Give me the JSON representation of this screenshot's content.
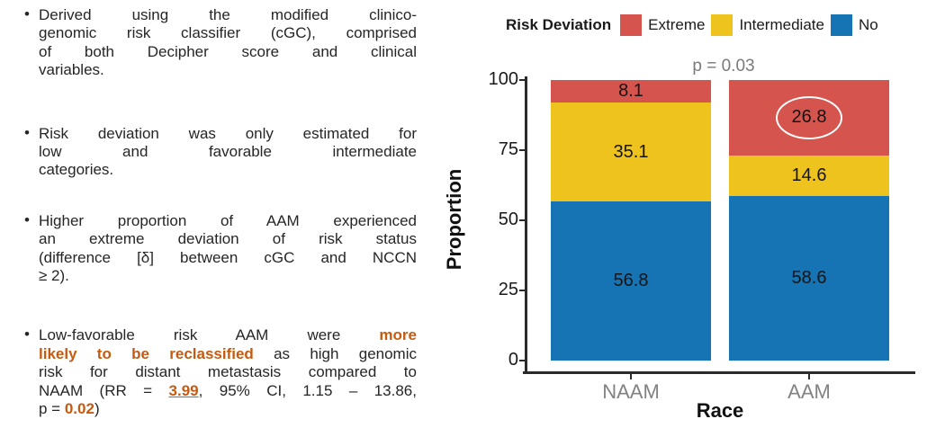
{
  "left_panel": {
    "bullets": [
      {
        "lines": [
          [
            {
              "text": "Derived using the modified clinico-"
            }
          ],
          [
            {
              "text": "genomic risk classifier (cGC), comprised"
            }
          ],
          [
            {
              "text": "of both Decipher score and clinical"
            }
          ],
          [
            {
              "text": "variables."
            }
          ]
        ]
      },
      {
        "lines": [
          [
            {
              "text": "Risk deviation was only estimated for"
            }
          ],
          [
            {
              "text": "low and favorable intermediate"
            }
          ],
          [
            {
              "text": "categories."
            }
          ]
        ]
      },
      {
        "lines": [
          [
            {
              "text": "Higher proportion of AAM experienced"
            }
          ],
          [
            {
              "text": "an extreme deviation of risk status"
            }
          ],
          [
            {
              "text": "(difference [δ] between cGC and NCCN"
            }
          ],
          [
            {
              "text": "≥ 2)."
            }
          ]
        ]
      },
      {
        "lines": [
          [
            {
              "text": "Low-favorable risk AAM were "
            },
            {
              "text": "more",
              "em": true
            }
          ],
          [
            {
              "text": "likely to be reclassified",
              "em": true
            },
            {
              "text": " as high genomic"
            }
          ],
          [
            {
              "text": "risk for distant metastasis compared to"
            }
          ],
          [
            {
              "text": "NAAM (RR = "
            },
            {
              "text": "3.99",
              "em": true,
              "underline": true
            },
            {
              "text": ", 95% CI, 1.15 – 13.86,"
            }
          ],
          [
            {
              "text": "p = "
            },
            {
              "text": "0.02",
              "em": true
            },
            {
              "text": ")"
            }
          ]
        ]
      }
    ],
    "emphasis_color": "#C55A11"
  },
  "chart_data": {
    "type": "bar",
    "stacked": true,
    "legend_title": "Risk Deviation",
    "p_value_label": "p = 0.03",
    "categories": [
      "NAAM",
      "AAM"
    ],
    "series": [
      {
        "name": "Extreme",
        "color": "#D5554E",
        "values": [
          8.1,
          26.8
        ]
      },
      {
        "name": "Intermediate",
        "color": "#EFC31E",
        "values": [
          35.1,
          14.6
        ]
      },
      {
        "name": "No",
        "color": "#1674B5",
        "values": [
          56.8,
          58.6
        ]
      }
    ],
    "xlabel": "Race",
    "ylabel": "Proportion",
    "ylim": [
      0,
      100
    ],
    "yticks": [
      0,
      25,
      50,
      75,
      100
    ],
    "legend_position": "top",
    "grid": false,
    "annotation": {
      "circled_value": "26.8",
      "category": "AAM",
      "series": "Extreme",
      "shape": "white-ellipse"
    }
  }
}
